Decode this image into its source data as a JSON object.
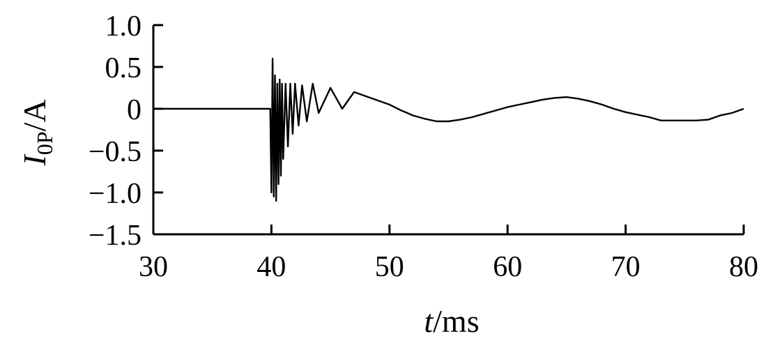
{
  "chart_data": {
    "type": "line",
    "xlabel": {
      "main": "t",
      "rest": "/ms"
    },
    "ylabel": {
      "main": "I",
      "sub": "0P",
      "rest": "/A"
    },
    "xlim": [
      30,
      80
    ],
    "ylim": [
      -1.5,
      1.0
    ],
    "xticks": [
      30,
      40,
      50,
      60,
      70,
      80
    ],
    "yticks": [
      1.0,
      0.5,
      0,
      -0.5,
      -1.0,
      -1.5
    ],
    "xtick_labels": [
      "30",
      "40",
      "50",
      "60",
      "70",
      "80"
    ],
    "ytick_labels": [
      "1.0",
      "0.5",
      "0",
      "−0.5",
      "−1.0",
      "−1.5"
    ],
    "grid": false,
    "series": [
      {
        "color": "#000000",
        "x": [
          30,
          39.9,
          40.0,
          40.1,
          40.2,
          40.3,
          40.4,
          40.5,
          40.6,
          40.7,
          40.8,
          40.9,
          41.0,
          41.2,
          41.4,
          41.6,
          41.8,
          42.0,
          42.3,
          42.6,
          43.0,
          43.5,
          44.0,
          45.0,
          46.0,
          47.0,
          48.0,
          49.0,
          50.0,
          51.0,
          52.0,
          53.0,
          54.0,
          55.0,
          56.0,
          57.0,
          58.0,
          59.0,
          60.0,
          61.0,
          62.0,
          63.0,
          64.0,
          65.0,
          66.0,
          67.0,
          68.0,
          69.0,
          70.0,
          71.0,
          72.0,
          73.0,
          74.0,
          75.0,
          76.0,
          77.0,
          78.0,
          79.0,
          80.0
        ],
        "y": [
          0,
          0,
          -1.0,
          0.6,
          -1.05,
          0.4,
          -1.1,
          0.3,
          -0.9,
          0.35,
          -0.8,
          0.3,
          -0.6,
          0.3,
          -0.45,
          0.3,
          -0.3,
          0.3,
          -0.2,
          0.28,
          -0.15,
          0.3,
          -0.05,
          0.25,
          0.0,
          0.2,
          0.15,
          0.1,
          0.05,
          -0.02,
          -0.08,
          -0.12,
          -0.15,
          -0.15,
          -0.13,
          -0.1,
          -0.06,
          -0.02,
          0.02,
          0.05,
          0.08,
          0.11,
          0.13,
          0.14,
          0.12,
          0.09,
          0.05,
          0.0,
          -0.04,
          -0.07,
          -0.1,
          -0.14,
          -0.14,
          -0.14,
          -0.14,
          -0.13,
          -0.08,
          -0.05,
          0.0
        ]
      }
    ]
  }
}
